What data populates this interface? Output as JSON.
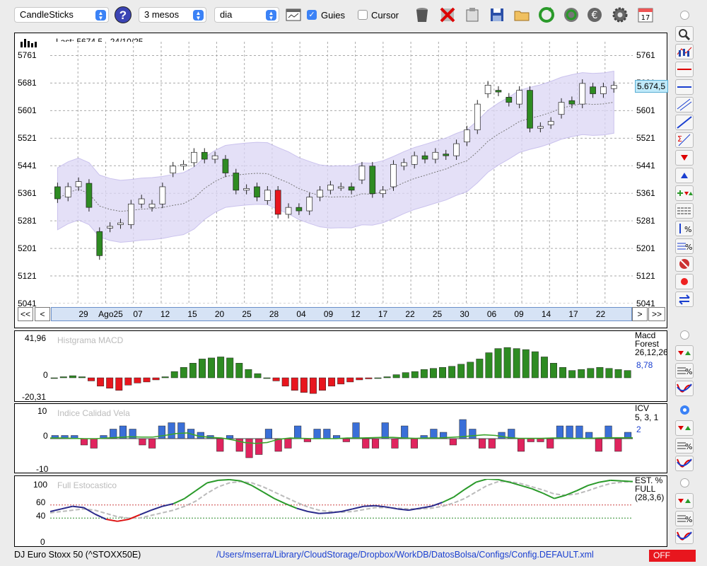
{
  "toolbar": {
    "chart_type": "CandleSticks",
    "period": "3 mesos",
    "interval": "dia",
    "guides_label": "Guies",
    "guides_checked": true,
    "cursor_label": "Cursor",
    "cursor_checked": false,
    "help_glyph": "?",
    "icons": [
      "calendar-window-icon",
      "trash-icon",
      "delete-icon",
      "clipboard-icon",
      "save-icon",
      "folder-icon",
      "refresh-icon",
      "refresh-globe-icon",
      "euro-icon",
      "settings-gear-icon",
      "calendar-17-icon"
    ],
    "calendar_day": "17"
  },
  "main_chart": {
    "last_label": "Last: 5674.5 - 24/10/25",
    "price_tag": "5.674,5",
    "y_ticks": [
      "5761",
      "5681",
      "5601",
      "5521",
      "5441",
      "5361",
      "5281",
      "5201",
      "5121",
      "5041"
    ],
    "x_labels": [
      "29",
      "Ago25",
      "07",
      "12",
      "15",
      "20",
      "25",
      "28",
      "04",
      "09",
      "12",
      "17",
      "22",
      "25",
      "30",
      "06",
      "09",
      "14",
      "17",
      "22"
    ],
    "nav": {
      "first": "<<",
      "prev": "<",
      "next": ">",
      "last": ">>"
    }
  },
  "macd_panel": {
    "title": "Histgrama MACD",
    "y_ticks": [
      "41,96",
      "0",
      "-20,31"
    ],
    "legend": [
      "Macd",
      "Forest",
      "26,12,26"
    ],
    "value": "8,78"
  },
  "icv_panel": {
    "title": "Indice Calidad Vela",
    "y_ticks": [
      "10",
      "0",
      "-10"
    ],
    "legend": [
      "ICV",
      "5, 3, 1"
    ],
    "value": "2"
  },
  "stoch_panel": {
    "title": "Full Estocastico",
    "y_ticks": [
      "100",
      "60",
      "40",
      "0"
    ],
    "legend": [
      "EST. %",
      "FULL",
      "(28,3,6)"
    ]
  },
  "status": {
    "instrument": "DJ Euro Stoxx 50 (^STOXX50E)",
    "path": "/Users/mserra/Library/CloudStorage/Dropbox/WorkDB/DatosBolsa/Configs/Config.DEFAULT.xml",
    "state": "OFF"
  },
  "colors": {
    "up": "#2e8b22",
    "down": "#e8161e",
    "band": "#dcd6f5",
    "icv_up": "#3a6fd8",
    "icv_down": "#e0245e"
  },
  "chart_data": [
    {
      "type": "candlestick",
      "ylim": [
        5041,
        5801
      ],
      "ohlc_close": [
        5345,
        5380,
        5395,
        5320,
        5180,
        5265,
        5275,
        5330,
        5345,
        5330,
        5380,
        5440,
        5445,
        5480,
        5460,
        5470,
        5420,
        5370,
        5375,
        5350,
        5370,
        5300,
        5320,
        5310,
        5350,
        5370,
        5385,
        5380,
        5370,
        5440,
        5360,
        5370,
        5445,
        5450,
        5470,
        5460,
        5480,
        5470,
        5505,
        5545,
        5620,
        5675,
        5655,
        5625,
        5660,
        5550,
        5555,
        5570,
        5625,
        5620,
        5680,
        5650,
        5670,
        5674.5
      ],
      "ohlc_open": [
        5380,
        5350,
        5380,
        5390,
        5250,
        5260,
        5270,
        5270,
        5330,
        5320,
        5330,
        5420,
        5440,
        5450,
        5480,
        5460,
        5460,
        5420,
        5370,
        5380,
        5340,
        5370,
        5300,
        5320,
        5310,
        5350,
        5370,
        5380,
        5380,
        5400,
        5440,
        5360,
        5380,
        5440,
        5445,
        5470,
        5460,
        5475,
        5470,
        5510,
        5545,
        5650,
        5660,
        5640,
        5620,
        5660,
        5550,
        5560,
        5590,
        5630,
        5620,
        5670,
        5650,
        5665
      ]
    },
    {
      "type": "bar",
      "name": "MACD histogram",
      "ylim": [
        -20.31,
        41.96
      ],
      "values": [
        0,
        1,
        2,
        1,
        -3,
        -8,
        -10,
        -12,
        -7,
        -5,
        -4,
        -2,
        1,
        6,
        10,
        14,
        18,
        19,
        20,
        19,
        14,
        8,
        4,
        0,
        -3,
        -8,
        -12,
        -14,
        -15,
        -12,
        -8,
        -6,
        -4,
        -2,
        -1,
        0,
        1,
        3,
        5,
        6,
        8,
        9,
        10,
        11,
        13,
        15,
        18,
        24,
        28,
        29,
        28,
        27,
        25,
        20,
        14,
        10,
        7,
        8,
        9,
        10,
        9,
        8,
        7
      ]
    },
    {
      "type": "bar",
      "name": "ICV",
      "ylim": [
        -10,
        10
      ],
      "values": [
        1,
        1,
        1,
        -2,
        -3,
        1,
        3,
        4,
        3,
        -2,
        -3,
        4,
        5,
        5,
        3,
        2,
        1,
        -4,
        1,
        -4,
        -6,
        -5,
        3,
        -4,
        -3,
        4,
        -1,
        3,
        3,
        1,
        -1,
        5,
        -3,
        -3,
        5,
        -3,
        4,
        -3,
        1,
        3,
        2,
        -2,
        6,
        3,
        -3,
        -3,
        2,
        3,
        -4,
        -1,
        -1,
        -3,
        4,
        4,
        4,
        2,
        -4,
        4,
        -4,
        2
      ],
      "line": [
        0.2,
        0.2,
        0.1,
        0,
        0,
        0.2,
        0.4,
        0.6,
        0.5,
        0.5,
        1,
        1.6,
        1.8,
        0.8,
        0.4,
        0.2,
        -0.4,
        -1.2,
        -1.5,
        -1.2,
        -0.2,
        0.2,
        0.1,
        0,
        0,
        0,
        0.2,
        0.2,
        0.3,
        0.4,
        0.4,
        0.2,
        0.1,
        0.2,
        0.2,
        0.4,
        0.6,
        0.9,
        1.2,
        1,
        0.4,
        0.1,
        0.1,
        0.1,
        0.2,
        0.2,
        0.1,
        0.1,
        0.2,
        0.3,
        0.3,
        0.3
      ]
    },
    {
      "type": "line",
      "name": "Full stochastic",
      "ylim": [
        0,
        100
      ],
      "k": [
        50,
        54,
        58,
        56,
        46,
        38,
        35,
        38,
        45,
        52,
        58,
        62,
        70,
        82,
        94,
        98,
        99,
        97,
        90,
        80,
        70,
        62,
        55,
        50,
        47,
        48,
        50,
        54,
        58,
        59,
        57,
        54,
        52,
        55,
        58,
        64,
        72,
        84,
        95,
        100,
        99,
        95,
        90,
        85,
        78,
        70,
        75,
        82,
        90,
        95,
        98,
        97,
        96
      ],
      "d": [
        48,
        50,
        52,
        54,
        52,
        47,
        42,
        40,
        40,
        44,
        48,
        52,
        58,
        66,
        78,
        88,
        94,
        96,
        94,
        88,
        80,
        72,
        64,
        57,
        52,
        50,
        49,
        50,
        53,
        56,
        56,
        55,
        54,
        54,
        55,
        58,
        63,
        70,
        80,
        90,
        96,
        96,
        93,
        88,
        83,
        77,
        75,
        77,
        82,
        88,
        93,
        95,
        96
      ]
    }
  ]
}
